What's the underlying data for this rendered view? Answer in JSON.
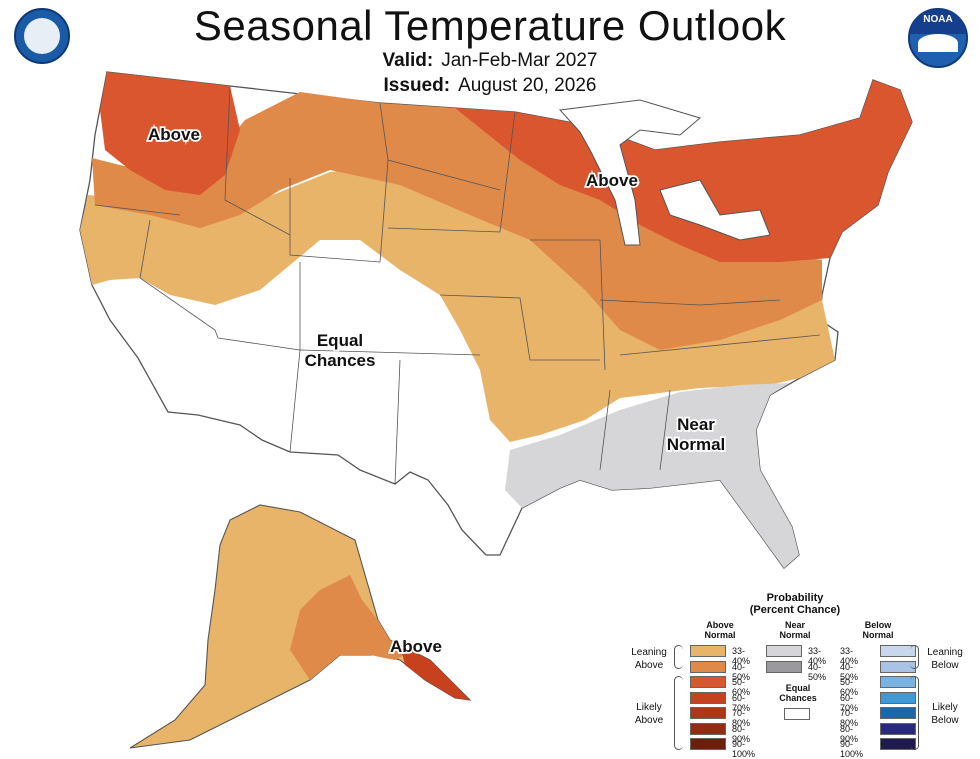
{
  "header": {
    "title": "Seasonal Temperature Outlook",
    "valid_label": "Valid:",
    "valid_value": "Jan-Feb-Mar 2027",
    "issued_label": "Issued:",
    "issued_value": "August 20, 2026"
  },
  "logos": {
    "left": "dept-of-commerce-seal-icon",
    "right": "noaa-logo-icon"
  },
  "map_labels": {
    "above_northwest": "Above",
    "above_greatlakes": "Above",
    "equal_chances_l1": "Equal",
    "equal_chances_l2": "Chances",
    "near_normal_l1": "Near",
    "near_normal_l2": "Normal",
    "above_alaska": "Above"
  },
  "colors": {
    "above_33_40": "#e8b46a",
    "above_40_50": "#e08a4a",
    "above_50_60": "#d9562f",
    "above_60_70": "#c8411f",
    "above_70_80": "#b0361a",
    "above_80_90": "#922c15",
    "above_90_100": "#6e1e0c",
    "near_33_40": "#d6d6d8",
    "near_40_50": "#9a9a9c",
    "below_33_40": "#c9d7ec",
    "below_40_50": "#a9c3e6",
    "below_50_60": "#7ab3e2",
    "below_60_70": "#3b9bd9",
    "below_70_80": "#1f66a8",
    "below_80_90": "#2a2a7a",
    "below_90_100": "#1f1a4e",
    "equal": "#ffffff",
    "border": "#555555"
  },
  "legend": {
    "title_l1": "Probability",
    "title_l2": "(Percent Chance)",
    "col_above": "Above",
    "col_above2": "Normal",
    "col_near": "Near",
    "col_near2": "Normal",
    "col_below": "Below",
    "col_below2": "Normal",
    "above_ranges": [
      "33-40%",
      "40-50%",
      "50-60%",
      "60-70%",
      "70-80%",
      "80-90%",
      "90-100%"
    ],
    "near_ranges": [
      "33-40%",
      "40-50%"
    ],
    "below_ranges": [
      "33-40%",
      "40-50%",
      "50-60%",
      "60-70%",
      "70-80%",
      "80-90%",
      "90-100%"
    ],
    "equal_l1": "Equal",
    "equal_l2": "Chances",
    "leaning_above_l1": "Leaning",
    "leaning_above_l2": "Above",
    "likely_above_l1": "Likely",
    "likely_above_l2": "Above",
    "leaning_below_l1": "Leaning",
    "leaning_below_l2": "Below",
    "likely_below_l1": "Likely",
    "likely_below_l2": "Below"
  }
}
